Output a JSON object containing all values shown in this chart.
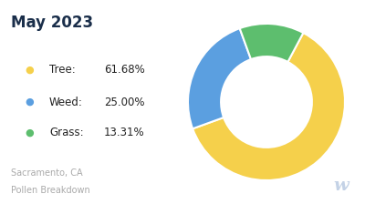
{
  "title": "May 2023",
  "subtitle_line1": "Sacramento, CA",
  "subtitle_line2": "Pollen Breakdown",
  "categories": [
    "Tree",
    "Weed",
    "Grass"
  ],
  "values": [
    61.68,
    25.0,
    13.31
  ],
  "labels": [
    "61.68%",
    "25.00%",
    "13.31%"
  ],
  "colors": [
    "#F5D04B",
    "#5B9FE0",
    "#5DBE6E"
  ],
  "title_color": "#1a2e4a",
  "subtitle_color": "#aaaaaa",
  "background_color": "#ffffff",
  "start_angle": 62,
  "donut_width": 0.42
}
